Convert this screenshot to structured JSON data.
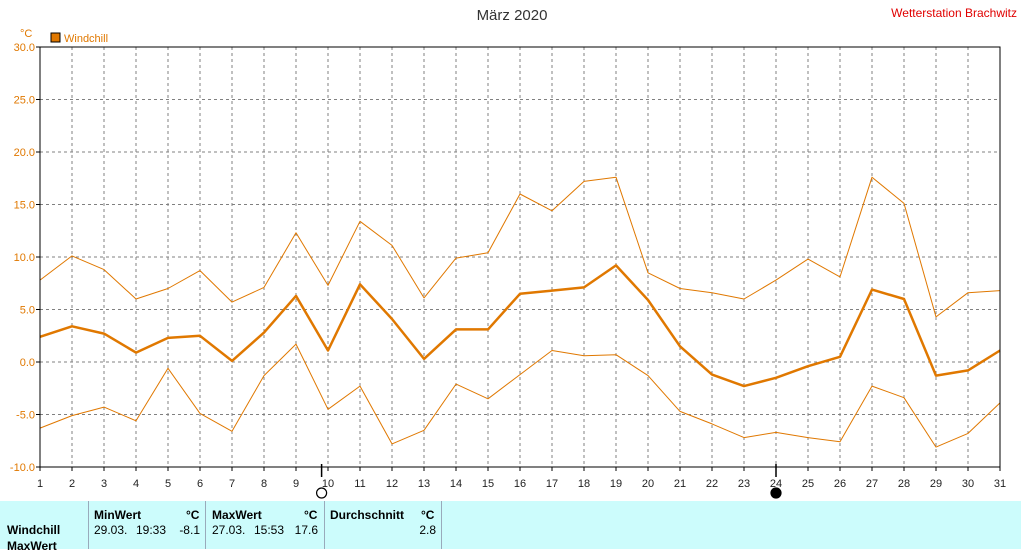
{
  "header": {
    "title": "März 2020",
    "station": "Wetterstation Brachwitz"
  },
  "legend": {
    "label": "Windchill",
    "color": "#e07800"
  },
  "chart_data": {
    "type": "line",
    "title": "März 2020",
    "ylabel": "°C",
    "xlabel": "",
    "ylim": [
      -10.0,
      30.0
    ],
    "yticks": [
      "-10.0",
      "-5.0",
      "0.0",
      "5.0",
      "10.0",
      "15.0",
      "20.0",
      "25.0",
      "30.0"
    ],
    "grid": true,
    "legend_position": "top-left",
    "x": [
      1,
      2,
      3,
      4,
      5,
      6,
      7,
      8,
      9,
      10,
      11,
      12,
      13,
      14,
      15,
      16,
      17,
      18,
      19,
      20,
      21,
      22,
      23,
      24,
      25,
      26,
      27,
      28,
      29,
      30,
      31
    ],
    "series": [
      {
        "name": "Windchill",
        "role": "mean",
        "color": "#e07800",
        "values": [
          2.4,
          3.4,
          2.7,
          0.9,
          2.3,
          2.5,
          0.1,
          2.8,
          6.3,
          1.1,
          7.4,
          4.1,
          0.3,
          3.1,
          3.1,
          6.5,
          6.8,
          7.1,
          9.2,
          5.9,
          1.5,
          -1.2,
          -2.3,
          -1.5,
          -0.4,
          0.5,
          6.9,
          6.0,
          -1.3,
          -0.8,
          1.1
        ]
      },
      {
        "role": "max",
        "color": "#e07800",
        "values": [
          7.8,
          10.1,
          8.8,
          6.0,
          7.0,
          8.7,
          5.7,
          7.1,
          12.3,
          7.3,
          13.4,
          11.1,
          6.1,
          9.9,
          10.4,
          16.0,
          14.4,
          17.2,
          17.6,
          8.5,
          7.0,
          6.6,
          6.0,
          7.8,
          9.8,
          8.1,
          17.6,
          15.1,
          4.3,
          6.6,
          6.8
        ]
      },
      {
        "role": "min",
        "color": "#e07800",
        "values": [
          -6.3,
          -5.1,
          -4.3,
          -5.6,
          -0.6,
          -4.9,
          -6.6,
          -1.3,
          1.7,
          -4.5,
          -2.3,
          -7.8,
          -6.5,
          -2.1,
          -3.5,
          -1.2,
          1.1,
          0.6,
          0.7,
          -1.3,
          -4.7,
          -5.9,
          -7.2,
          -6.7,
          -7.2,
          -7.6,
          -2.3,
          -3.4,
          -8.1,
          -6.8,
          -3.9
        ]
      }
    ],
    "moon_phases": [
      {
        "day": 9.8,
        "phase": "full-moon"
      },
      {
        "day": 24.0,
        "phase": "new-moon"
      }
    ]
  },
  "stats": {
    "row_label": "Windchill",
    "next_row_label": "MaxWert",
    "min": {
      "header": "MinWert",
      "unit": "°C",
      "date": "29.03.",
      "time": "19:33",
      "value": "-8.1"
    },
    "max": {
      "header": "MaxWert",
      "unit": "°C",
      "date": "27.03.",
      "time": "15:53",
      "value": "17.6"
    },
    "avg": {
      "header": "Durchschnitt",
      "unit": "°C",
      "value": "2.8"
    }
  }
}
